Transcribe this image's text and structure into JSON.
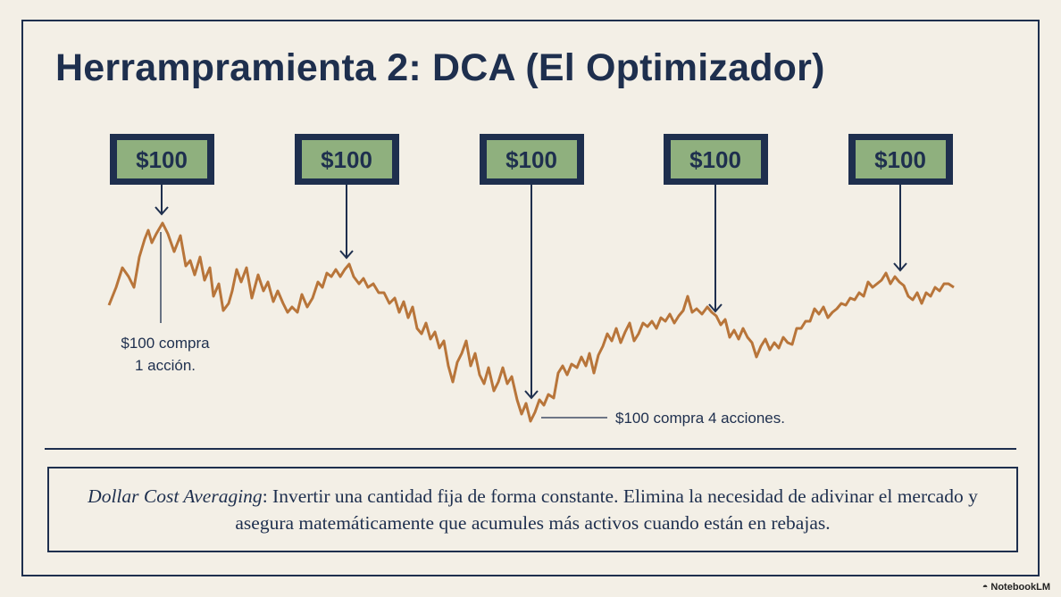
{
  "title": "Herrampramienta 2: DCA (El Optimizador)",
  "bills": [
    {
      "label": "$100"
    },
    {
      "label": "$100"
    },
    {
      "label": "$100"
    },
    {
      "label": "$100"
    },
    {
      "label": "$100"
    }
  ],
  "annotations": {
    "peak_line1": "$100 compra",
    "peak_line2": "1 acción.",
    "trough": "$100 compra 4 acciones."
  },
  "definition": {
    "term": "Dollar Cost Averaging",
    "text": ": Invertir una cantidad fija de forma constante. Elimina la necesidad de adivinar el mercado y asegura matemáticamente que acumules más activos cuando están en rebajas."
  },
  "brand": {
    "name": "NotebookLM",
    "icon": "notebooklm-logo-icon"
  },
  "colors": {
    "navy": "#1e2f4e",
    "bill_green": "#8fb07e",
    "line_orange": "#b8753a",
    "background": "#f3efe6"
  }
}
